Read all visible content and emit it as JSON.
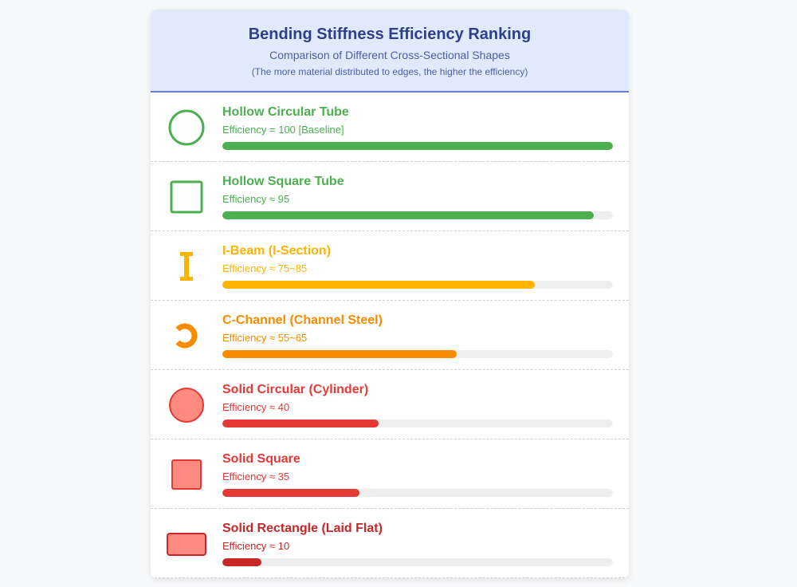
{
  "header": {
    "title": "Bending Stiffness Efficiency Ranking",
    "subtitle": "Comparison of Different Cross-Sectional Shapes",
    "note": "(The more material distributed to edges, the higher the efficiency)"
  },
  "chart_data": {
    "type": "bar",
    "orientation": "horizontal",
    "title": "Bending Stiffness Efficiency Ranking",
    "subtitle": "Comparison of Different Cross-Sectional Shapes",
    "xlim": [
      0,
      100
    ],
    "categories": [
      "Hollow Circular Tube",
      "Hollow Square Tube",
      "I-Beam (I-Section)",
      "C-Channel (Channel Steel)",
      "Solid Circular (Cylinder)",
      "Solid Square",
      "Solid Rectangle (Laid Flat)"
    ],
    "values": [
      100,
      95,
      80,
      60,
      40,
      35,
      10
    ],
    "rows": [
      {
        "name": "Hollow Circular Tube",
        "efficiency_label": "Efficiency = 100 [Baseline]",
        "value": 100,
        "color": "#4caf50",
        "icon": "hollow-circle-icon"
      },
      {
        "name": "Hollow Square Tube",
        "efficiency_label": "Efficiency ≈ 95",
        "value": 95,
        "color": "#4caf50",
        "icon": "hollow-square-icon"
      },
      {
        "name": "I-Beam (I-Section)",
        "efficiency_label": "Efficiency ≈ 75~85",
        "value": 80,
        "color": "#ffb300",
        "icon": "i-beam-icon"
      },
      {
        "name": "C-Channel (Channel Steel)",
        "efficiency_label": "Efficiency ≈ 55~65",
        "value": 60,
        "color": "#f78c00",
        "icon": "c-channel-icon"
      },
      {
        "name": "Solid Circular (Cylinder)",
        "efficiency_label": "Efficiency ≈ 40",
        "value": 40,
        "color": "#e53935",
        "icon": "solid-circle-icon"
      },
      {
        "name": "Solid Square",
        "efficiency_label": "Efficiency ≈ 35",
        "value": 35,
        "color": "#e53935",
        "icon": "solid-square-icon"
      },
      {
        "name": "Solid Rectangle (Laid Flat)",
        "efficiency_label": "Efficiency ≈ 10",
        "value": 10,
        "color": "#c62828",
        "icon": "solid-rectangle-icon"
      }
    ]
  }
}
